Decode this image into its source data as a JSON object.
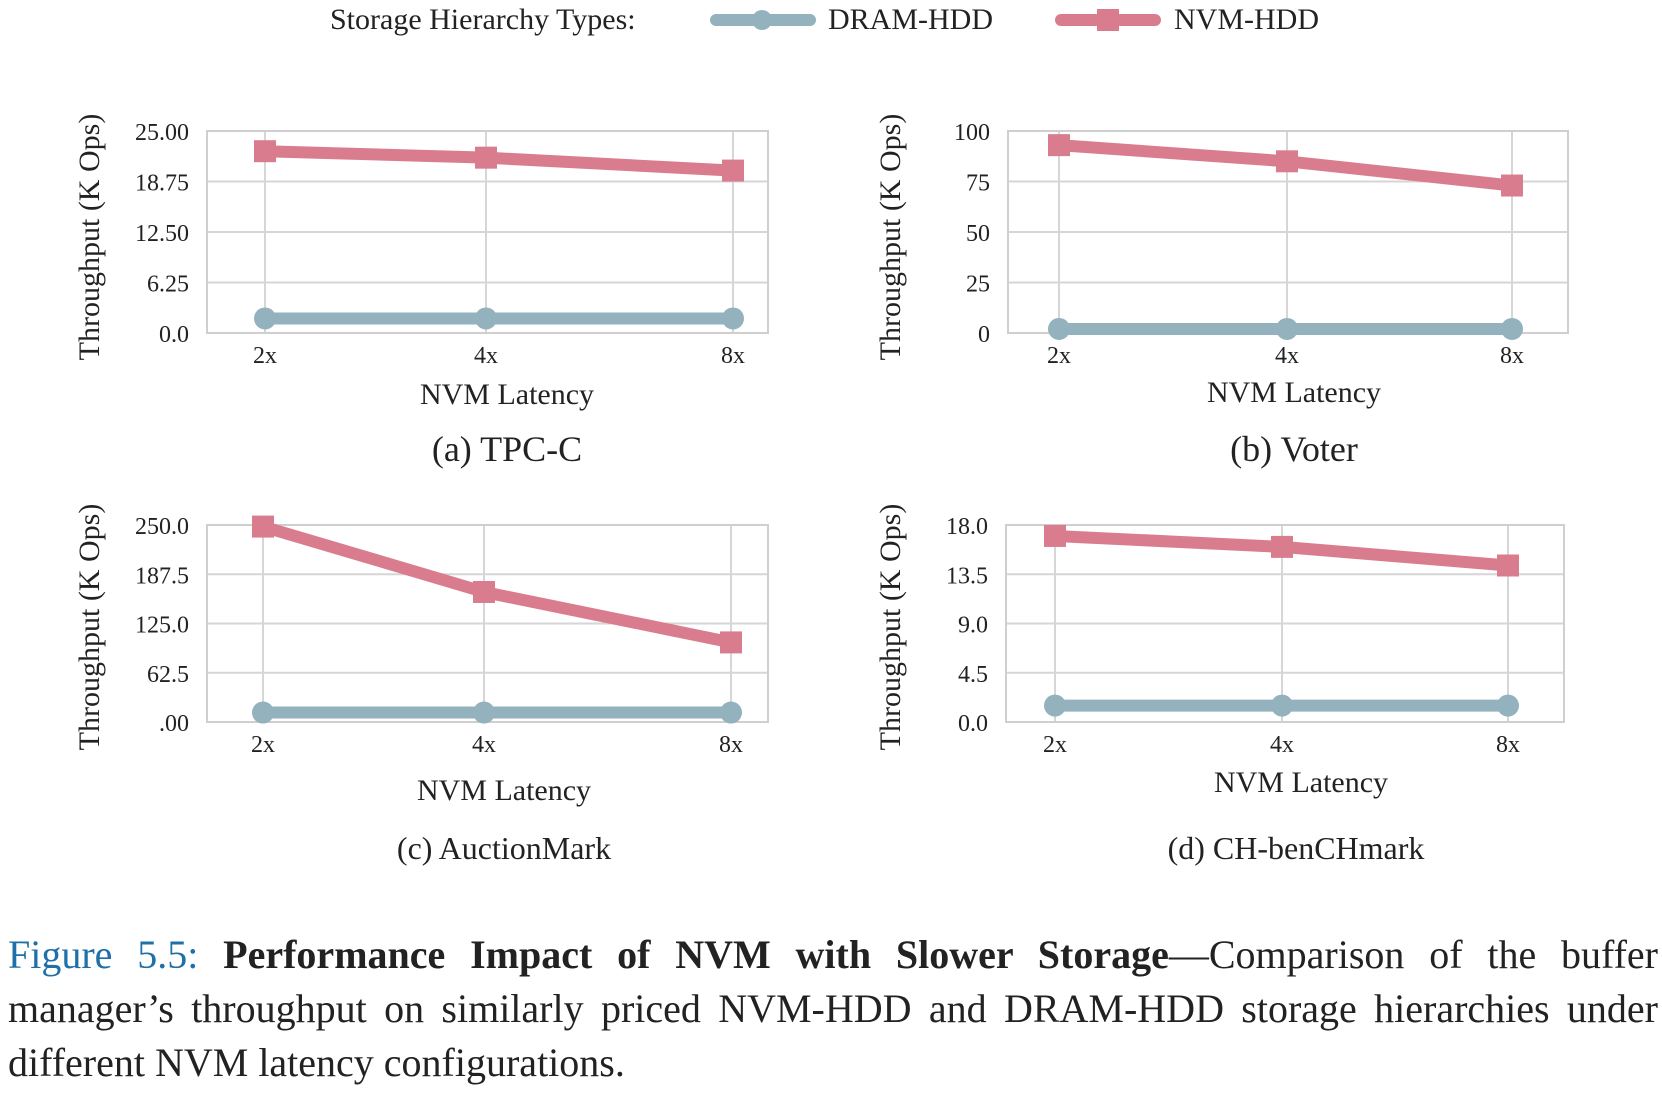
{
  "legend": {
    "title": "Storage Hierarchy Types:",
    "items": [
      {
        "label": "DRAM-HDD",
        "color": "#93b2bd",
        "marker": "circle"
      },
      {
        "label": "NVM-HDD",
        "color": "#d97d8e",
        "marker": "square"
      }
    ]
  },
  "chart_data": [
    {
      "type": "line",
      "title": "(a) TPC-C",
      "xlabel": "NVM Latency",
      "ylabel": "Throughput (K Ops)",
      "categories": [
        "2x",
        "4x",
        "8x"
      ],
      "yticks": [
        "0.0",
        "6.25",
        "12.50",
        "18.75",
        "25.00"
      ],
      "ylim": [
        0,
        25
      ],
      "grid": true,
      "series": [
        {
          "name": "DRAM-HDD",
          "values": [
            1.8,
            1.8,
            1.8
          ]
        },
        {
          "name": "NVM-HDD",
          "values": [
            22.5,
            21.7,
            20.1
          ]
        }
      ]
    },
    {
      "type": "line",
      "title": "(b) Voter",
      "xlabel": "NVM Latency",
      "ylabel": "Throughput (K Ops)",
      "categories": [
        "2x",
        "4x",
        "8x"
      ],
      "yticks": [
        "0",
        "25",
        "50",
        "75",
        "100"
      ],
      "ylim": [
        0,
        100
      ],
      "grid": true,
      "series": [
        {
          "name": "DRAM-HDD",
          "values": [
            2,
            2,
            2
          ]
        },
        {
          "name": "NVM-HDD",
          "values": [
            93,
            85,
            73
          ]
        }
      ]
    },
    {
      "type": "line",
      "title": "(c) AuctionMark",
      "xlabel": "NVM Latency",
      "ylabel": "Throughput (K Ops)",
      "categories": [
        "2x",
        "4x",
        "8x"
      ],
      "yticks": [
        ".00",
        "62.5",
        "125.0",
        "187.5",
        "250.0"
      ],
      "ylim": [
        0,
        250
      ],
      "grid": true,
      "series": [
        {
          "name": "DRAM-HDD",
          "values": [
            12,
            12,
            12
          ]
        },
        {
          "name": "NVM-HDD",
          "values": [
            248,
            165,
            101
          ]
        }
      ]
    },
    {
      "type": "line",
      "title": "(d) CH-benCHmark",
      "xlabel": "NVM Latency",
      "ylabel": "Throughput (K Ops)",
      "categories": [
        "2x",
        "4x",
        "8x"
      ],
      "yticks": [
        "0.0",
        "4.5",
        "9.0",
        "13.5",
        "18.0"
      ],
      "ylim": [
        0,
        18
      ],
      "grid": true,
      "series": [
        {
          "name": "DRAM-HDD",
          "values": [
            1.5,
            1.5,
            1.5
          ]
        },
        {
          "name": "NVM-HDD",
          "values": [
            17.0,
            16.0,
            14.3
          ]
        }
      ]
    }
  ],
  "caption": {
    "figure_label": "Figure 5.5:",
    "bold_title": "Performance Impact of NVM with Slower Storage",
    "text": "—Comparison of the buffer manager’s throughput on similarly priced NVM-HDD and DRAM-HDD storage hierarchies under different NVM latency configurations."
  }
}
